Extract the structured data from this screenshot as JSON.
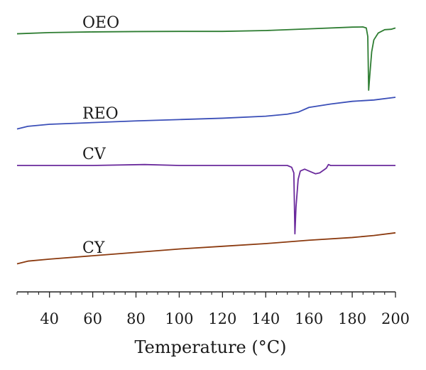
{
  "chart_data": {
    "type": "line",
    "title": "",
    "xlabel": "Temperature (°C)",
    "ylabel": "",
    "xlim": [
      25,
      200
    ],
    "xticks": [
      40,
      60,
      80,
      100,
      120,
      140,
      160,
      180,
      200
    ],
    "minor_tick_step": 5,
    "grid": false,
    "legend": "inline labels above each trace",
    "y_units": "arbitrary (vertically offset traces)",
    "series": [
      {
        "name": "OEO",
        "color": "#2e7d32",
        "points": [
          [
            25,
            0.12
          ],
          [
            40,
            0.26
          ],
          [
            60,
            0.34
          ],
          [
            80,
            0.38
          ],
          [
            100,
            0.4
          ],
          [
            120,
            0.4
          ],
          [
            140,
            0.5
          ],
          [
            160,
            0.7
          ],
          [
            180,
            0.9
          ],
          [
            185,
            0.92
          ],
          [
            186.5,
            0.8
          ],
          [
            187.2,
            -0.2
          ],
          [
            187.6,
            -6.5
          ],
          [
            188.2,
            -4.5
          ],
          [
            189,
            -2.0
          ],
          [
            190,
            -0.6
          ],
          [
            192,
            0.2
          ],
          [
            195,
            0.6
          ],
          [
            198,
            0.65
          ],
          [
            200,
            0.8
          ]
        ]
      },
      {
        "name": "REO",
        "color": "#3b4fb8",
        "points": [
          [
            25,
            -2.7
          ],
          [
            30,
            -2.3
          ],
          [
            40,
            -2.0
          ],
          [
            60,
            -1.75
          ],
          [
            80,
            -1.5
          ],
          [
            100,
            -1.3
          ],
          [
            120,
            -1.1
          ],
          [
            140,
            -0.8
          ],
          [
            150,
            -0.5
          ],
          [
            155,
            -0.2
          ],
          [
            160,
            0.5
          ],
          [
            170,
            1.0
          ],
          [
            180,
            1.4
          ],
          [
            190,
            1.6
          ],
          [
            200,
            2.0
          ]
        ]
      },
      {
        "name": "CV",
        "color": "#6a2a9c",
        "points": [
          [
            25,
            0.0
          ],
          [
            60,
            0.0
          ],
          [
            84,
            0.1
          ],
          [
            100,
            0.0
          ],
          [
            140,
            0.0
          ],
          [
            150,
            0.0
          ],
          [
            152,
            -0.2
          ],
          [
            153,
            -0.8
          ],
          [
            153.5,
            -7.4
          ],
          [
            154,
            -4.5
          ],
          [
            155,
            -1.5
          ],
          [
            156,
            -0.6
          ],
          [
            158,
            -0.4
          ],
          [
            160,
            -0.6
          ],
          [
            163,
            -0.9
          ],
          [
            165,
            -0.8
          ],
          [
            168,
            -0.3
          ],
          [
            169,
            0.1
          ],
          [
            170,
            0.0
          ],
          [
            200,
            0.0
          ]
        ]
      },
      {
        "name": "CY",
        "color": "#8b3a0f",
        "points": [
          [
            25,
            -3.0
          ],
          [
            30,
            -2.6
          ],
          [
            40,
            -2.3
          ],
          [
            60,
            -1.8
          ],
          [
            80,
            -1.3
          ],
          [
            100,
            -0.8
          ],
          [
            120,
            -0.4
          ],
          [
            140,
            0.0
          ],
          [
            160,
            0.5
          ],
          [
            180,
            0.9
          ],
          [
            190,
            1.2
          ],
          [
            200,
            1.6
          ]
        ]
      }
    ]
  }
}
